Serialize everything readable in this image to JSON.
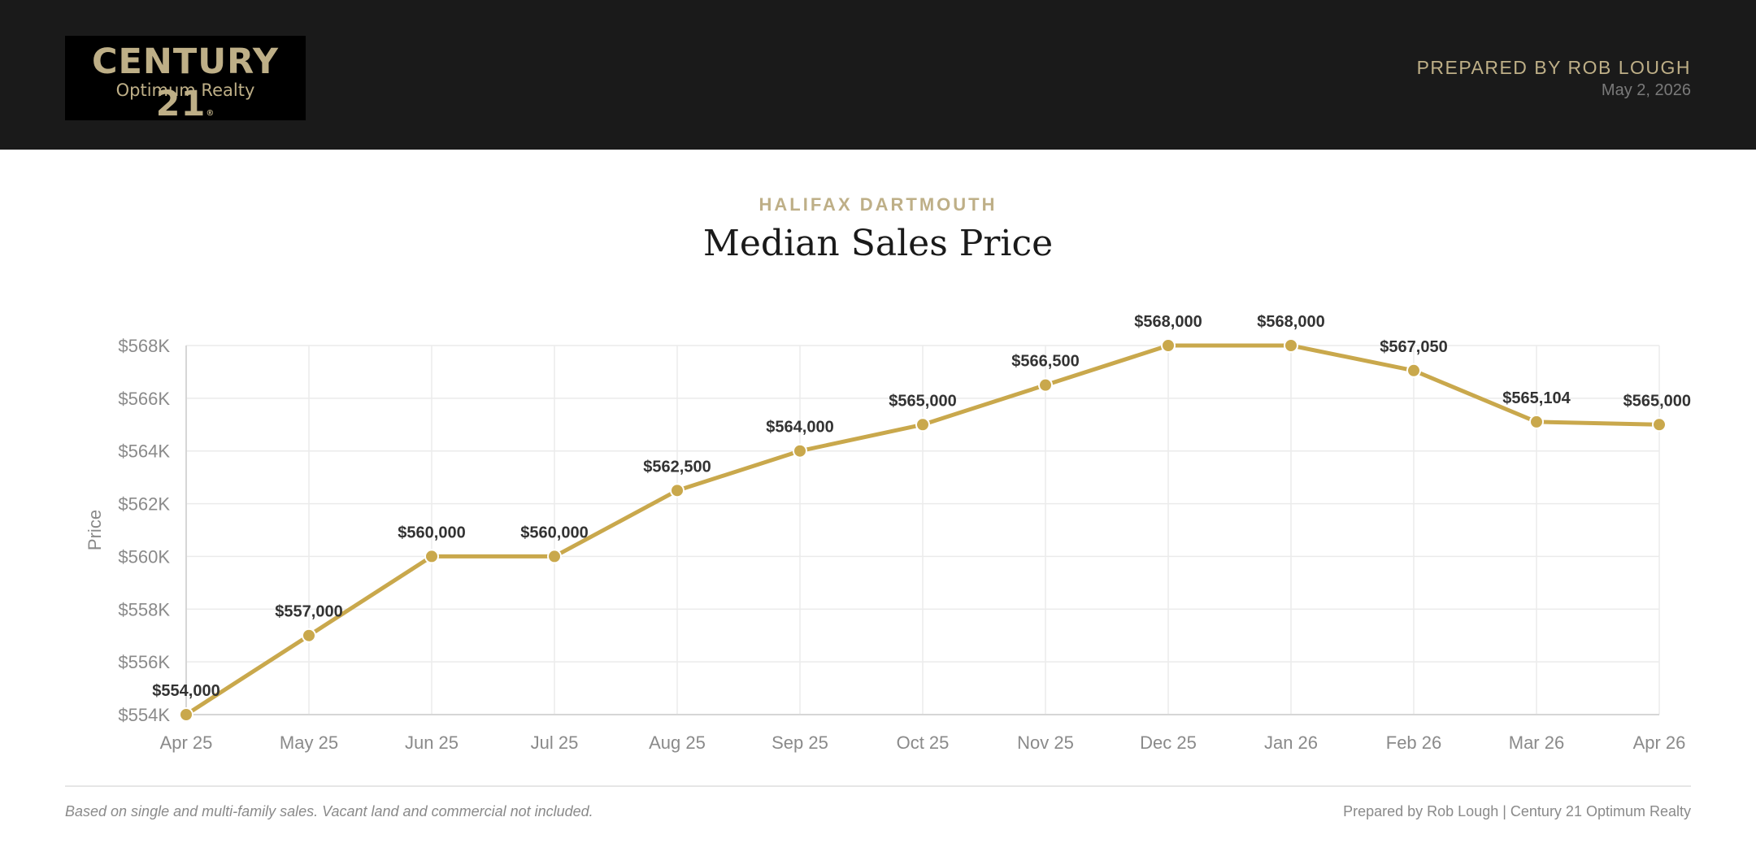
{
  "header": {
    "logo": {
      "brand": "CENTURY 21",
      "registered_mark": "®",
      "office": "Optimum Realty"
    },
    "prepared_by": "PREPARED BY ROB LOUGH",
    "date": "May 2, 2026"
  },
  "region": "HALIFAX DARTMOUTH",
  "title": "Median Sales Price",
  "chart_data": {
    "type": "line",
    "title": "Median Sales Price",
    "xlabel": "",
    "ylabel": "Price",
    "categories": [
      "Apr 25",
      "May 25",
      "Jun 25",
      "Jul 25",
      "Aug 25",
      "Sep 25",
      "Oct 25",
      "Nov 25",
      "Dec 25",
      "Jan 26",
      "Feb 26",
      "Mar 26",
      "Apr 26"
    ],
    "series": [
      {
        "name": "",
        "values": [
          554000,
          557000,
          560000,
          560000,
          562500,
          564000,
          565000,
          566500,
          568000,
          568000,
          567050,
          565104,
          565000
        ],
        "data_labels": [
          "$554,000",
          "$557,000",
          "$560,000",
          "$560,000",
          "$562,500",
          "$564,000",
          "$565,000",
          "$566,500",
          "$568,000",
          "$568,000",
          "$567,050",
          "$565,104",
          "$565,000"
        ]
      }
    ],
    "ylim": [
      554000,
      568000
    ],
    "yticks": [
      554000,
      556000,
      558000,
      560000,
      562000,
      564000,
      566000,
      568000
    ],
    "ytick_labels": [
      "$554K",
      "$556K",
      "$558K",
      "$560K",
      "$562K",
      "$564K",
      "$566K",
      "$568K"
    ],
    "grid": true,
    "legend": "none",
    "colors": {
      "line": "#c9a84c",
      "grid": "#ebebeb",
      "tick_text": "#8a8a8a",
      "label_text": "#333333"
    }
  },
  "footer": {
    "note": "Based on single and multi-family sales. Vacant land and commercial not included.",
    "credit": "Prepared by Rob Lough | Century 21 Optimum Realty"
  }
}
